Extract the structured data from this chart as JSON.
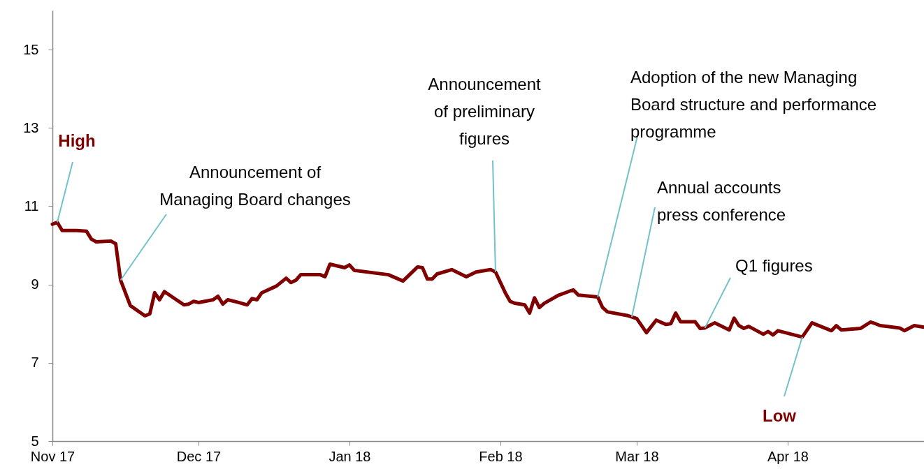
{
  "chart_data": {
    "type": "line",
    "x": [
      "2017-11-01",
      "2017-11-02",
      "2017-11-03",
      "2017-11-06",
      "2017-11-08",
      "2017-11-09",
      "2017-11-10",
      "2017-11-13",
      "2017-11-14",
      "2017-11-15",
      "2017-11-17",
      "2017-11-20",
      "2017-11-21",
      "2017-11-22",
      "2017-11-23",
      "2017-11-24",
      "2017-11-28",
      "2017-11-29",
      "2017-11-30",
      "2017-12-01",
      "2017-12-04",
      "2017-12-05",
      "2017-12-06",
      "2017-12-07",
      "2017-12-09",
      "2017-12-11",
      "2017-12-12",
      "2017-12-13",
      "2017-12-14",
      "2017-12-17",
      "2017-12-19",
      "2017-12-20",
      "2017-12-21",
      "2017-12-22",
      "2017-12-26",
      "2017-12-27",
      "2017-12-28",
      "2017-12-31",
      "2018-01-01",
      "2018-01-02",
      "2018-01-09",
      "2018-01-12",
      "2018-01-15",
      "2018-01-16",
      "2018-01-17",
      "2018-01-18",
      "2018-01-19",
      "2018-01-22",
      "2018-01-25",
      "2018-01-27",
      "2018-01-30",
      "2018-01-31",
      "2018-02-02",
      "2018-02-03",
      "2018-02-04",
      "2018-02-06",
      "2018-02-07",
      "2018-02-08",
      "2018-02-09",
      "2018-02-10",
      "2018-02-13",
      "2018-02-15",
      "2018-02-16",
      "2018-02-17",
      "2018-02-21",
      "2018-02-22",
      "2018-02-23",
      "2018-02-27",
      "2018-03-01",
      "2018-03-03",
      "2018-03-05",
      "2018-03-07",
      "2018-03-08",
      "2018-03-09",
      "2018-03-10",
      "2018-03-13",
      "2018-03-14",
      "2018-03-15",
      "2018-03-17",
      "2018-03-20",
      "2018-03-21",
      "2018-03-22",
      "2018-03-23",
      "2018-03-24",
      "2018-03-27",
      "2018-03-28",
      "2018-03-29",
      "2018-03-30",
      "2018-04-04",
      "2018-04-06",
      "2018-04-10",
      "2018-04-11",
      "2018-04-12",
      "2018-04-16",
      "2018-04-18",
      "2018-04-19",
      "2018-04-20",
      "2018-04-24",
      "2018-04-25",
      "2018-04-27",
      "2018-04-29"
    ],
    "series": [
      {
        "color": "#800000",
        "values": [
          10.54,
          10.59,
          10.38,
          10.38,
          10.36,
          10.16,
          10.09,
          10.11,
          10.04,
          9.11,
          8.46,
          8.2,
          8.25,
          8.79,
          8.61,
          8.82,
          8.48,
          8.5,
          8.57,
          8.54,
          8.61,
          8.7,
          8.5,
          8.61,
          8.55,
          8.48,
          8.64,
          8.61,
          8.79,
          8.96,
          9.16,
          9.05,
          9.11,
          9.25,
          9.25,
          9.2,
          9.52,
          9.43,
          9.5,
          9.36,
          9.25,
          9.09,
          9.45,
          9.43,
          9.14,
          9.14,
          9.27,
          9.38,
          9.2,
          9.32,
          9.38,
          9.32,
          8.79,
          8.57,
          8.52,
          8.48,
          8.27,
          8.66,
          8.41,
          8.52,
          8.73,
          8.82,
          8.86,
          8.73,
          8.68,
          8.41,
          8.3,
          8.21,
          8.13,
          7.77,
          8.09,
          7.98,
          8.0,
          8.27,
          8.05,
          8.05,
          7.88,
          7.89,
          8.02,
          7.84,
          8.14,
          7.95,
          7.88,
          7.93,
          7.73,
          7.8,
          7.71,
          7.82,
          7.66,
          8.02,
          7.82,
          7.95,
          7.84,
          7.88,
          8.04,
          8.0,
          7.95,
          7.89,
          7.82,
          7.95,
          7.91
        ]
      }
    ],
    "xlim": [
      "2017-11-01",
      "2018-04-29"
    ],
    "xticks": [
      {
        "value": "2017-11-01",
        "label": "Nov 17"
      },
      {
        "value": "2017-12-01",
        "label": "Dec 17"
      },
      {
        "value": "2018-01-01",
        "label": "Jan 18"
      },
      {
        "value": "2018-02-01",
        "label": "Feb 18"
      },
      {
        "value": "2018-03-01",
        "label": "Mar 18"
      },
      {
        "value": "2018-04-01",
        "label": "Apr 18"
      }
    ],
    "ylim": [
      5,
      16
    ],
    "yticks": [
      5,
      7,
      9,
      11,
      13,
      15
    ],
    "annotations": [
      {
        "text": "High",
        "x": "2017-11-02",
        "y": 10.59
      },
      {
        "text": "Announcement of\nManaging Board changes",
        "x": "2017-11-15",
        "y": 9.11
      },
      {
        "text": "Announcement\nof preliminary\nfigures",
        "x": "2018-01-31",
        "y": 9.32
      },
      {
        "text": "Adoption of the new Managing\nBoard structure and performance\nprogramme",
        "x": "2018-02-21",
        "y": 8.68
      },
      {
        "text": "Annual accounts\npress conference",
        "x": "2018-02-28",
        "y": 8.17
      },
      {
        "text": "Q1 figures",
        "x": "2018-03-15",
        "y": 7.89
      },
      {
        "text": "Low",
        "x": "2018-04-04",
        "y": 7.66
      }
    ],
    "grid": false,
    "marker": "none",
    "line_style": "solid"
  }
}
